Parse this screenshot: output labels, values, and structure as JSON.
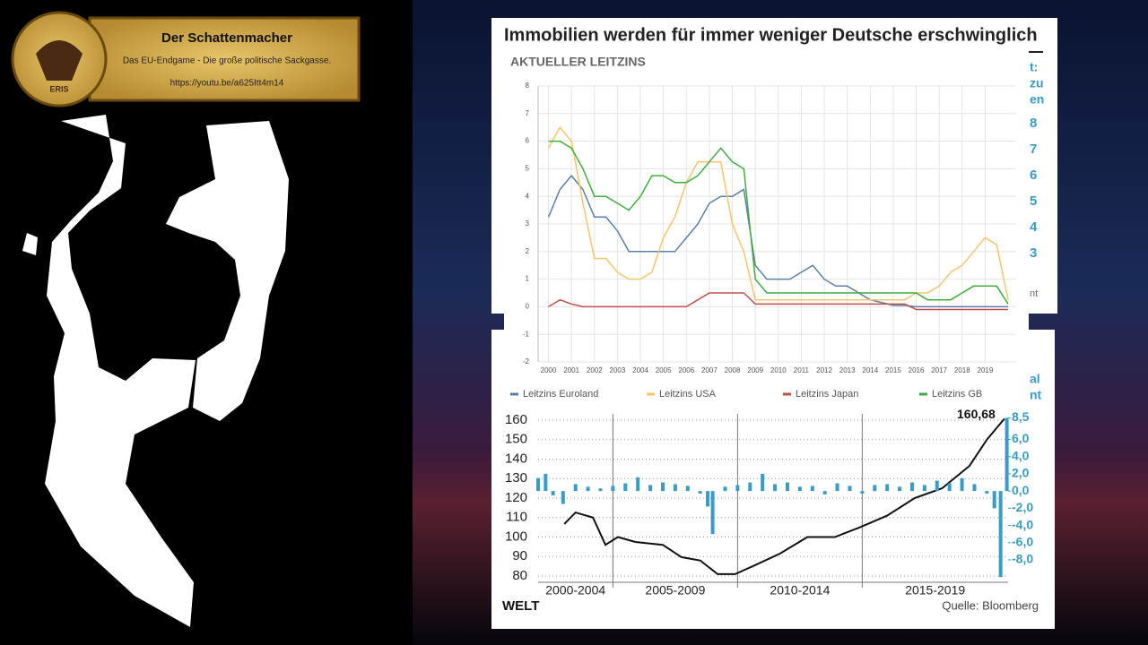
{
  "banner": {
    "title": "Der Schattenmacher",
    "subtitle": "Das EU-Endgame - Die große politische Sackgasse.",
    "url": "https://youtu.be/a625Itt4m14",
    "logo": "ERIS"
  },
  "headline": "Immobilien werden für immer weniger Deutsche erschwinglich",
  "brand": "WELT",
  "source": "Quelle: Bloomberg",
  "occluded_fragments": [
    "t:",
    "zu",
    "en",
    "8",
    "7",
    "6",
    "5",
    "4",
    "3",
    "nt",
    "al",
    "nt"
  ],
  "chart_data": [
    {
      "type": "line",
      "title": "AKTUELLER LEITZINS",
      "x": [
        2000,
        2000.5,
        2001,
        2001.5,
        2002,
        2002.5,
        2003,
        2003.5,
        2004,
        2004.5,
        2005,
        2005.5,
        2006,
        2006.5,
        2007,
        2007.5,
        2008,
        2008.5,
        2009,
        2009.5,
        2010,
        2010.5,
        2011,
        2011.5,
        2012,
        2012.5,
        2013,
        2013.5,
        2014,
        2014.5,
        2015,
        2015.5,
        2016,
        2016.5,
        2017,
        2017.5,
        2018,
        2018.5,
        2019,
        2019.5,
        2020
      ],
      "series": [
        {
          "name": "Leitzins Euroland",
          "color": "#5b7fa6",
          "values": [
            3.25,
            4.25,
            4.75,
            4.25,
            3.25,
            3.25,
            2.75,
            2.0,
            2.0,
            2.0,
            2.0,
            2.0,
            2.5,
            3.0,
            3.75,
            4.0,
            4.0,
            4.25,
            1.5,
            1.0,
            1.0,
            1.0,
            1.25,
            1.5,
            1.0,
            0.75,
            0.75,
            0.5,
            0.25,
            0.15,
            0.05,
            0.05,
            0,
            0,
            0,
            0,
            0,
            0,
            0,
            0,
            0
          ]
        },
        {
          "name": "Leitzins USA",
          "color": "#f5c56b",
          "values": [
            5.75,
            6.5,
            6.0,
            3.75,
            1.75,
            1.75,
            1.25,
            1.0,
            1.0,
            1.25,
            2.5,
            3.25,
            4.5,
            5.25,
            5.25,
            5.25,
            3.0,
            2.0,
            0.25,
            0.25,
            0.25,
            0.25,
            0.25,
            0.25,
            0.25,
            0.25,
            0.25,
            0.25,
            0.25,
            0.25,
            0.25,
            0.25,
            0.5,
            0.5,
            0.75,
            1.25,
            1.5,
            2.0,
            2.5,
            2.25,
            0.25
          ]
        },
        {
          "name": "Leitzins Japan",
          "color": "#c0504d",
          "values": [
            0,
            0.25,
            0.1,
            0,
            0,
            0,
            0,
            0,
            0,
            0,
            0,
            0,
            0,
            0.25,
            0.5,
            0.5,
            0.5,
            0.5,
            0.1,
            0.1,
            0.1,
            0.1,
            0.1,
            0.1,
            0.1,
            0.1,
            0.1,
            0.1,
            0.1,
            0.1,
            0.1,
            0.1,
            -0.1,
            -0.1,
            -0.1,
            -0.1,
            -0.1,
            -0.1,
            -0.1,
            -0.1,
            -0.1
          ]
        },
        {
          "name": "Leitzins GB",
          "color": "#3fae3f",
          "values": [
            6.0,
            6.0,
            5.75,
            5.0,
            4.0,
            4.0,
            3.75,
            3.5,
            4.0,
            4.75,
            4.75,
            4.5,
            4.5,
            4.75,
            5.25,
            5.75,
            5.25,
            5.0,
            1.0,
            0.5,
            0.5,
            0.5,
            0.5,
            0.5,
            0.5,
            0.5,
            0.5,
            0.5,
            0.5,
            0.5,
            0.5,
            0.5,
            0.5,
            0.25,
            0.25,
            0.25,
            0.5,
            0.75,
            0.75,
            0.75,
            0.1
          ]
        }
      ],
      "xlim": [
        1999.55,
        2020.35
      ],
      "xticks": [
        2000,
        2001,
        2002,
        2003,
        2004,
        2005,
        2006,
        2007,
        2008,
        2009,
        2010,
        2011,
        2012,
        2013,
        2014,
        2015,
        2016,
        2017,
        2018,
        2019
      ],
      "ylim": [
        -2,
        8
      ],
      "yticks": [
        -2,
        -1,
        0,
        1,
        2,
        3,
        4,
        5,
        6,
        7,
        8
      ],
      "grid": true,
      "legend": "bottom"
    },
    {
      "type": "combo",
      "periods": [
        "2000-2004",
        "2005-2009",
        "2010-2014",
        "2015-2019"
      ],
      "series": [
        {
          "type": "line",
          "color": "#111111",
          "x": [
            2003.05,
            2003.5,
            2004.2,
            2004.7,
            2005.2,
            2005.9,
            2007.0,
            2007.75,
            2008.5,
            2009.2,
            2009.9,
            2010.6,
            2011.7,
            2012.8,
            2013.9,
            2014.9,
            2016.0,
            2017.1,
            2018.2,
            2019.3,
            2020.0,
            2020.7
          ],
          "values": [
            106.7,
            112.6,
            110,
            96,
            100,
            97.5,
            96,
            89.7,
            88,
            81,
            81,
            85,
            91.5,
            100,
            100,
            105,
            111,
            120,
            125,
            136.5,
            150,
            160.68
          ],
          "value_labels": [
            null,
            null,
            null,
            null,
            null,
            null,
            null,
            null,
            null,
            null,
            null,
            null,
            null,
            null,
            null,
            null,
            null,
            null,
            null,
            null,
            null,
            "160,68"
          ]
        },
        {
          "type": "bar",
          "axis": "y2",
          "color": "#3a9cc4",
          "x": [
            2002.0,
            2002.3,
            2002.6,
            2003.0,
            2003.5,
            2004.0,
            2004.5,
            2005.0,
            2005.5,
            2006.0,
            2006.5,
            2007.0,
            2007.5,
            2008.0,
            2008.5,
            2008.8,
            2009.0,
            2009.5,
            2010.0,
            2010.5,
            2011.0,
            2011.5,
            2012.0,
            2012.5,
            2013.0,
            2013.5,
            2014.0,
            2014.5,
            2015.0,
            2015.5,
            2016.0,
            2016.5,
            2017.0,
            2017.5,
            2018.0,
            2018.5,
            2019.0,
            2019.5,
            2020.0,
            2020.3,
            2020.55,
            2020.8
          ],
          "values": [
            1.5,
            2.0,
            -0.5,
            -1.5,
            0.8,
            0.5,
            0.3,
            0.6,
            0.9,
            1.6,
            0.7,
            1.0,
            0.8,
            0.6,
            -0.3,
            -1.8,
            -5.0,
            0.5,
            0.7,
            1.0,
            2.0,
            0.8,
            1.0,
            0.5,
            0.6,
            -0.4,
            0.9,
            0.6,
            -0.3,
            0.7,
            0.8,
            0.5,
            1.0,
            0.7,
            1.2,
            0.9,
            1.5,
            0.8,
            -0.3,
            -2.0,
            -10.0,
            8.5
          ]
        }
      ],
      "xlim": [
        2002,
        2020.85
      ],
      "xticks": [
        2005,
        2010,
        2015
      ],
      "ylim": [
        76.8,
        163.2
      ],
      "yticks": [
        80,
        90,
        100,
        110,
        120,
        130,
        140,
        150,
        160
      ],
      "y2lim": [
        -10.6,
        8.96
      ],
      "y2ticks": [
        {
          "value": 8.5,
          "label": "8,5"
        },
        {
          "value": 6,
          "label": "6,0"
        },
        {
          "value": 4,
          "label": "4,0"
        },
        {
          "value": 2,
          "label": "2,0"
        },
        {
          "value": 0,
          "label": "0,0"
        },
        {
          "value": -2,
          "label": "-2,0"
        },
        {
          "value": -4,
          "label": "-4,0"
        },
        {
          "value": -6,
          "label": "-6,0"
        },
        {
          "value": -8,
          "label": "-8,0"
        }
      ],
      "grid": true
    }
  ]
}
